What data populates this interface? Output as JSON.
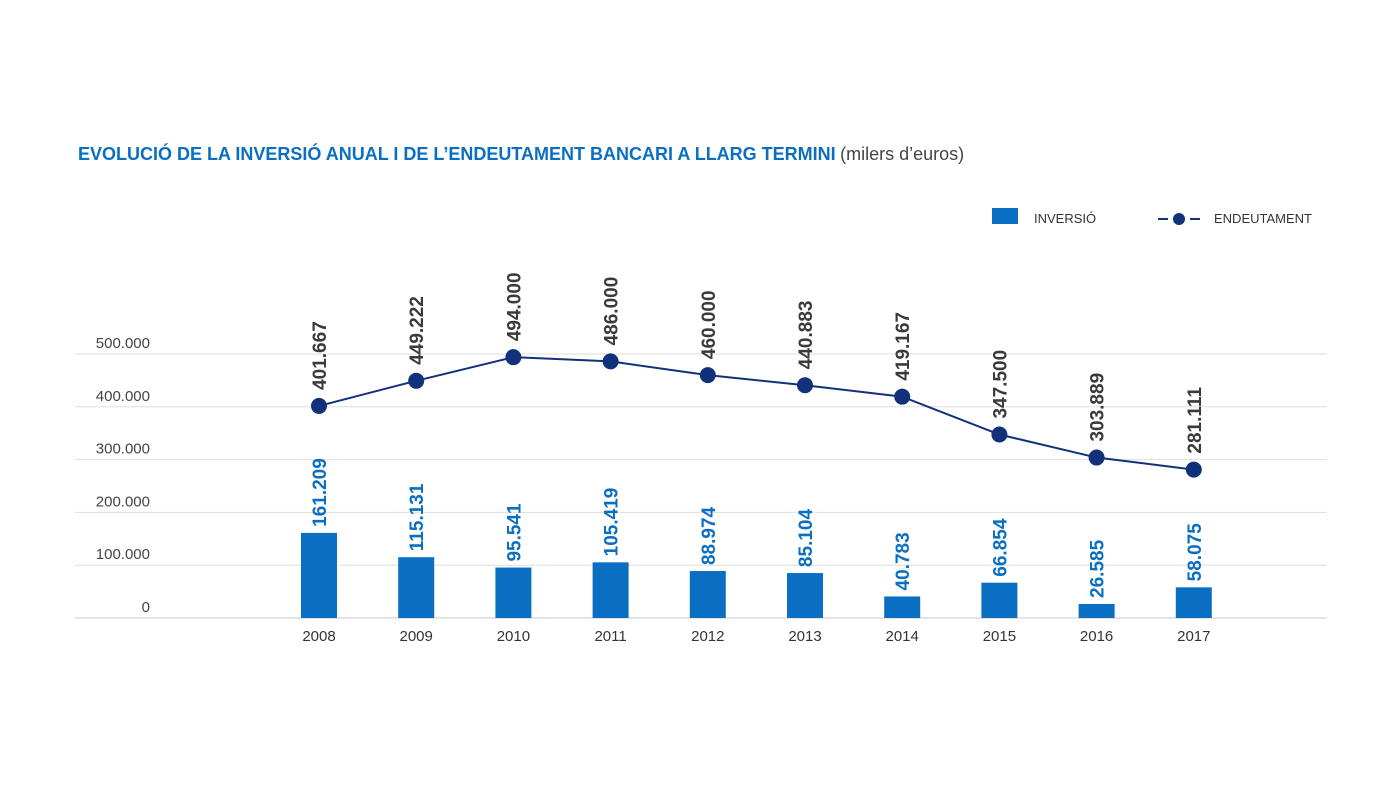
{
  "chart_data": {
    "type": "bar",
    "title": "EVOLUCIÓ DE LA INVERSIÓ ANUAL I DE L’ENDEUTAMENT BANCARI A LLARG TERMINI",
    "subtitle": "(milers d’euros)",
    "categories": [
      "2008",
      "2009",
      "2010",
      "2011",
      "2012",
      "2013",
      "2014",
      "2015",
      "2016",
      "2017"
    ],
    "ylim": [
      0,
      500000
    ],
    "yticks": [
      0,
      100000,
      200000,
      300000,
      400000,
      500000
    ],
    "ytick_labels": [
      "0",
      "100.000",
      "200.000",
      "300.000",
      "400.000",
      "500.000"
    ],
    "grid": true,
    "legend_position": "top-right",
    "series": [
      {
        "name": "INVERSIÓ",
        "type": "bar",
        "color": "#0a6fc2",
        "values": [
          161209,
          115131,
          95541,
          105419,
          88974,
          85104,
          40783,
          66854,
          26585,
          58075
        ],
        "labels": [
          "161.209",
          "115.131",
          "95.541",
          "105.419",
          "88.974",
          "85.104",
          "40.783",
          "66.854",
          "26.585",
          "58.075"
        ]
      },
      {
        "name": "ENDEUTAMENT",
        "type": "line",
        "color": "#11317a",
        "values": [
          401667,
          449222,
          494000,
          486000,
          460000,
          440883,
          419167,
          347500,
          303889,
          281111
        ],
        "labels": [
          "401.667",
          "449.222",
          "494.000",
          "486.000",
          "460.000",
          "440.883",
          "419.167",
          "347.500",
          "303.889",
          "281.111"
        ]
      }
    ]
  }
}
